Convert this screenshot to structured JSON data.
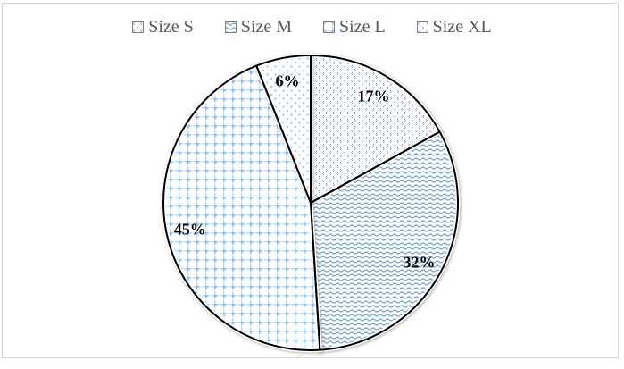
{
  "window": {
    "background": "#ffffff",
    "frame_border_color": "#d6d6d6"
  },
  "chart_data": {
    "type": "pie",
    "title": "",
    "categories": [
      "Size S",
      "Size M",
      "Size L",
      "Size XL"
    ],
    "values": [
      17,
      32,
      45,
      6
    ],
    "data_labels": [
      "17%",
      "32%",
      "45%",
      "6%"
    ],
    "legend_position": "top",
    "start_angle_deg": 0,
    "direction": "clockwise",
    "pattern_fills": [
      "divot-scatter",
      "wave",
      "grid",
      "sparse-dots"
    ],
    "colors": {
      "pattern_blue": "#7FA8D4",
      "pattern_blue_light": "#C3D9EE",
      "pattern_dot_blue": "#9CC2E6",
      "slice_border": "#000000",
      "slice_gap": "#ffffff",
      "data_label_text": "#000000",
      "legend_text": "#595959",
      "legend_swatch_border": "#7f7f7f"
    }
  }
}
